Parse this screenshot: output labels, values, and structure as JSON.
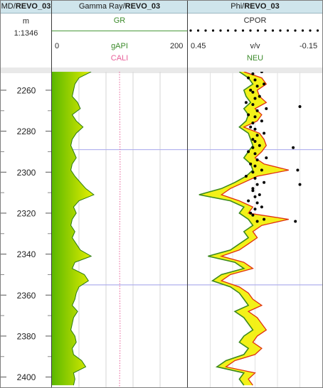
{
  "header": {
    "depth_col": {
      "prefix": "MD/",
      "well": "REVO_03"
    },
    "gr_col": {
      "prefix": "Gamma Ray/",
      "well": "REVO_03"
    },
    "phi_col": {
      "prefix": "Phi/",
      "well": "REVO_03"
    }
  },
  "depth_track": {
    "unit": "m",
    "scale": "1:1346"
  },
  "gr_track": {
    "curve1": {
      "name": "GR",
      "unit": "gAPI",
      "min": "0",
      "max": "200",
      "color": "#3b9a3b"
    },
    "curve2": {
      "name": "CALI",
      "color": "#e8609a"
    }
  },
  "phi_track": {
    "curve1": {
      "name": "CPOR",
      "unit": "v/v",
      "min": "0.45",
      "max": "-0.15",
      "color": "#000000"
    },
    "curve2": {
      "name": "NEU",
      "color": "#5aa84a"
    }
  },
  "colors": {
    "gr_fill_light": "#e8f000",
    "gr_fill_dark": "#5bb800",
    "gr_line": "#2a7a10",
    "neu_line": "#3c8a1c",
    "den_line": "#e03010",
    "phi_fill": "#f2f000",
    "marker": "#b0b0ee"
  },
  "chart_data": {
    "type": "line",
    "ytitle": "MD",
    "depth_ticks": [
      "2260",
      "2280",
      "2300",
      "2320",
      "2340",
      "2360",
      "2380",
      "2400"
    ],
    "depth_range": [
      2251,
      2405
    ],
    "marker_depths": [
      2289,
      2355
    ],
    "gr_range": [
      0,
      200
    ],
    "phi_range": [
      0.45,
      -0.15
    ],
    "GR": {
      "depth": [
        2251,
        2254,
        2257,
        2260,
        2263,
        2266,
        2269,
        2272,
        2275,
        2278,
        2281,
        2284,
        2287,
        2290,
        2293,
        2296,
        2299,
        2302,
        2305,
        2308,
        2311,
        2314,
        2317,
        2320,
        2323,
        2326,
        2329,
        2332,
        2335,
        2338,
        2341,
        2344,
        2347,
        2350,
        2353,
        2356,
        2359,
        2362,
        2365,
        2368,
        2371,
        2374,
        2377,
        2380,
        2383,
        2386,
        2389,
        2392,
        2395,
        2398,
        2401,
        2404
      ],
      "values": [
        58,
        40,
        34,
        32,
        30,
        38,
        42,
        30,
        36,
        46,
        36,
        30,
        28,
        32,
        36,
        30,
        28,
        34,
        42,
        50,
        62,
        40,
        32,
        36,
        30,
        28,
        34,
        30,
        36,
        42,
        58,
        34,
        30,
        48,
        54,
        40,
        36,
        34,
        30,
        38,
        32,
        30,
        28,
        34,
        36,
        30,
        32,
        44,
        50,
        32,
        34,
        32
      ]
    },
    "CALI": {
      "depth": [
        2251,
        2300,
        2340,
        2380,
        2405
      ],
      "values": [
        100,
        101,
        100,
        101,
        100
      ]
    },
    "CPOR": {
      "depth": [
        2252,
        2255,
        2258,
        2261,
        2264,
        2267,
        2270,
        2273,
        2276,
        2279,
        2282,
        2285,
        2288,
        2291,
        2294,
        2297,
        2300,
        2303,
        2306,
        2309,
        2312,
        2315,
        2318,
        2321,
        2324,
        2251,
        2257,
        2263,
        2269,
        2275,
        2281,
        2287,
        2293,
        2299,
        2305,
        2311,
        2317,
        2323,
        2254,
        2260,
        2266,
        2272,
        2278,
        2284,
        2290,
        2296,
        2302,
        2308,
        2314,
        2320
      ],
      "values": [
        0.16,
        0.15,
        0.14,
        0.16,
        0.15,
        0.16,
        0.14,
        0.15,
        0.16,
        0.15,
        0.14,
        0.15,
        0.16,
        0.15,
        0.14,
        0.15,
        0.16,
        0.15,
        0.14,
        0.16,
        0.15,
        0.14,
        0.15,
        0.16,
        0.14,
        0.12,
        0.11,
        0.13,
        0.1,
        0.12,
        0.11,
        0.13,
        0.1,
        0.12,
        0.11,
        0.13,
        0.12,
        0.11,
        0.18,
        0.17,
        0.19,
        0.18,
        0.17,
        0.16,
        0.18,
        0.17,
        0.19,
        0.16,
        0.18,
        0.17
      ]
    },
    "CPOR_outliers": {
      "depth": [
        2268,
        2288,
        2299,
        2306,
        2324
      ],
      "values": [
        -0.05,
        -0.02,
        -0.04,
        -0.05,
        -0.03
      ]
    },
    "NEU": {
      "depth": [
        2251,
        2254,
        2257,
        2260,
        2263,
        2266,
        2269,
        2272,
        2275,
        2278,
        2281,
        2284,
        2287,
        2290,
        2293,
        2296,
        2299,
        2302,
        2305,
        2308,
        2311,
        2314,
        2317,
        2320,
        2323,
        2326,
        2329,
        2332,
        2335,
        2338,
        2341,
        2344,
        2347,
        2350,
        2353,
        2356,
        2359,
        2362,
        2365,
        2368,
        2371,
        2374,
        2377,
        2380,
        2383,
        2386,
        2389,
        2392,
        2395,
        2398,
        2401,
        2404
      ],
      "values": [
        0.22,
        0.18,
        0.16,
        0.2,
        0.19,
        0.17,
        0.2,
        0.18,
        0.19,
        0.22,
        0.18,
        0.17,
        0.16,
        0.18,
        0.2,
        0.17,
        0.16,
        0.19,
        0.24,
        0.3,
        0.4,
        0.26,
        0.2,
        0.22,
        0.18,
        0.16,
        0.2,
        0.18,
        0.22,
        0.26,
        0.36,
        0.24,
        0.2,
        0.3,
        0.34,
        0.26,
        0.22,
        0.2,
        0.18,
        0.24,
        0.2,
        0.18,
        0.16,
        0.2,
        0.22,
        0.18,
        0.2,
        0.28,
        0.32,
        0.2,
        0.22,
        0.2
      ]
    },
    "DEN_PHI": {
      "depth": [
        2251,
        2254,
        2257,
        2260,
        2263,
        2266,
        2269,
        2272,
        2275,
        2278,
        2281,
        2284,
        2287,
        2290,
        2293,
        2296,
        2299,
        2302,
        2305,
        2308,
        2311,
        2314,
        2317,
        2320,
        2323,
        2326,
        2329,
        2332,
        2335,
        2338,
        2341,
        2344,
        2347,
        2350,
        2353,
        2356,
        2359,
        2362,
        2365,
        2368,
        2371,
        2374,
        2377,
        2380,
        2383,
        2386,
        2389,
        2392,
        2395,
        2398,
        2401,
        2404
      ],
      "values": [
        0.2,
        0.12,
        0.1,
        0.14,
        0.13,
        0.1,
        0.15,
        0.12,
        0.14,
        0.2,
        0.13,
        0.11,
        0.1,
        0.12,
        0.15,
        0.11,
        0.0,
        0.14,
        0.2,
        0.26,
        0.3,
        0.22,
        0.16,
        0.18,
        0.0,
        0.12,
        0.16,
        0.14,
        0.18,
        0.22,
        0.3,
        0.2,
        0.16,
        0.26,
        0.3,
        0.22,
        0.18,
        0.16,
        0.12,
        0.18,
        0.14,
        0.12,
        0.1,
        0.14,
        0.16,
        0.12,
        0.15,
        0.24,
        0.28,
        0.15,
        0.18,
        0.16
      ]
    }
  }
}
